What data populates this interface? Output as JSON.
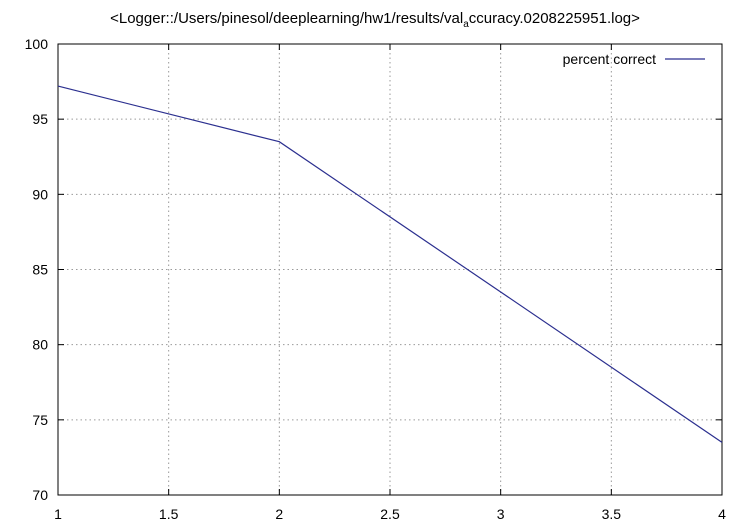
{
  "chart_data": {
    "type": "line",
    "title_prefix": "<Logger::/Users/pinesol/deeplearning/hw1/results/val",
    "title_sub": "a",
    "title_suffix": "ccuracy.0208225951.log>",
    "xlabel": "",
    "ylabel": "",
    "xlim": [
      1,
      4
    ],
    "ylim": [
      70,
      100
    ],
    "xticks": [
      1,
      1.5,
      2,
      2.5,
      3,
      3.5,
      4
    ],
    "yticks": [
      70,
      75,
      80,
      85,
      90,
      95,
      100
    ],
    "grid": true,
    "legend_position": "top-right",
    "series": [
      {
        "name": "percent correct",
        "color": "#2b2f8f",
        "x": [
          1,
          2,
          3,
          4
        ],
        "y": [
          97.2,
          93.5,
          83.5,
          73.5
        ]
      }
    ]
  }
}
